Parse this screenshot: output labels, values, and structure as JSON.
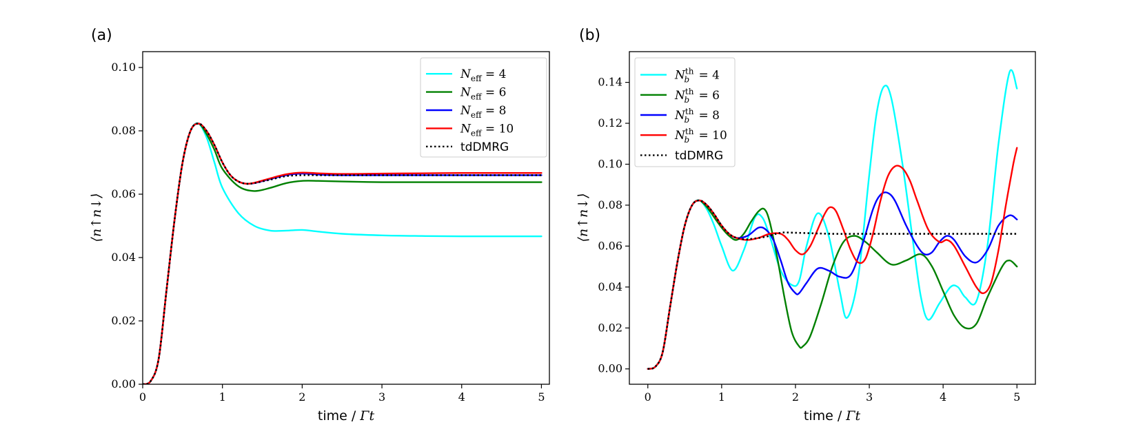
{
  "chart_data": [
    {
      "type": "line",
      "panel_label": "(a)",
      "xlabel_text": "time / ",
      "xlabel_math": "Γt",
      "ylabel": "⟨n↑n↓⟩",
      "xlim": [
        0,
        5.1
      ],
      "ylim": [
        0,
        0.105
      ],
      "xticks": [
        0,
        1,
        2,
        3,
        4,
        5
      ],
      "xtick_labels": [
        "0",
        "1",
        "2",
        "3",
        "4",
        "5"
      ],
      "yticks": [
        0.0,
        0.02,
        0.04,
        0.06,
        0.08,
        0.1
      ],
      "ytick_labels": [
        "0.00",
        "0.02",
        "0.04",
        "0.06",
        "0.08",
        "0.10"
      ],
      "legend_position": "top-right",
      "series": [
        {
          "name": "N_eff = 4",
          "label_main": "N",
          "label_sub": "eff",
          "label_rest": " = 4",
          "color": "#00ffff",
          "style": "solid",
          "x": [
            0,
            0.1,
            0.2,
            0.3,
            0.4,
            0.5,
            0.6,
            0.7,
            0.8,
            0.9,
            1.0,
            1.2,
            1.4,
            1.6,
            1.8,
            2.0,
            2.2,
            2.5,
            3.0,
            3.5,
            4.0,
            4.5,
            5.0
          ],
          "y": [
            0,
            0.001,
            0.008,
            0.03,
            0.052,
            0.07,
            0.08,
            0.0823,
            0.078,
            0.07,
            0.062,
            0.054,
            0.05,
            0.0485,
            0.0485,
            0.0487,
            0.0482,
            0.0475,
            0.047,
            0.0468,
            0.0467,
            0.0467,
            0.0467
          ]
        },
        {
          "name": "N_eff = 6",
          "label_main": "N",
          "label_sub": "eff",
          "label_rest": " = 6",
          "color": "#008000",
          "style": "solid",
          "x": [
            0,
            0.1,
            0.2,
            0.3,
            0.4,
            0.5,
            0.6,
            0.7,
            0.8,
            0.9,
            1.0,
            1.2,
            1.4,
            1.6,
            1.8,
            2.0,
            2.2,
            2.5,
            3.0,
            3.5,
            4.0,
            4.5,
            5.0
          ],
          "y": [
            0,
            0.001,
            0.008,
            0.03,
            0.052,
            0.07,
            0.08,
            0.0823,
            0.079,
            0.074,
            0.068,
            0.0625,
            0.061,
            0.062,
            0.0635,
            0.0642,
            0.0642,
            0.064,
            0.0638,
            0.0638,
            0.0638,
            0.0638,
            0.0638
          ]
        },
        {
          "name": "N_eff = 8",
          "label_main": "N",
          "label_sub": "eff",
          "label_rest": " = 8",
          "color": "#0000ff",
          "style": "solid",
          "x": [
            0,
            0.1,
            0.2,
            0.3,
            0.4,
            0.5,
            0.6,
            0.7,
            0.8,
            0.9,
            1.0,
            1.1,
            1.2,
            1.3,
            1.4,
            1.6,
            1.8,
            2.0,
            2.2,
            2.5,
            3.0,
            3.5,
            4.0,
            4.5,
            5.0
          ],
          "y": [
            0,
            0.001,
            0.008,
            0.03,
            0.052,
            0.07,
            0.08,
            0.0823,
            0.08,
            0.0755,
            0.07,
            0.066,
            0.064,
            0.0633,
            0.0635,
            0.0648,
            0.066,
            0.0665,
            0.0662,
            0.066,
            0.066,
            0.066,
            0.066,
            0.066,
            0.066
          ]
        },
        {
          "name": "N_eff = 10",
          "label_main": "N",
          "label_sub": "eff",
          "label_rest": " = 10",
          "color": "#ff0000",
          "style": "solid",
          "x": [
            0,
            0.1,
            0.2,
            0.3,
            0.4,
            0.5,
            0.6,
            0.7,
            0.8,
            0.9,
            1.0,
            1.1,
            1.2,
            1.3,
            1.4,
            1.6,
            1.8,
            2.0,
            2.2,
            2.5,
            3.0,
            3.5,
            4.0,
            4.5,
            5.0
          ],
          "y": [
            0,
            0.001,
            0.008,
            0.03,
            0.052,
            0.07,
            0.08,
            0.0823,
            0.08,
            0.0755,
            0.07,
            0.066,
            0.064,
            0.0633,
            0.0636,
            0.065,
            0.0663,
            0.0668,
            0.0666,
            0.0664,
            0.0665,
            0.0666,
            0.0667,
            0.0667,
            0.0667
          ]
        },
        {
          "name": "tdDMRG",
          "label_plain": "tdDMRG",
          "color": "#000000",
          "style": "dotted",
          "x": [
            0,
            0.1,
            0.2,
            0.3,
            0.4,
            0.5,
            0.6,
            0.7,
            0.8,
            0.9,
            1.0,
            1.1,
            1.2,
            1.3,
            1.4,
            1.6,
            1.8,
            2.0,
            2.2,
            2.5,
            3.0,
            3.5,
            4.0,
            4.5,
            5.0
          ],
          "y": [
            0,
            0.001,
            0.008,
            0.03,
            0.052,
            0.07,
            0.08,
            0.0823,
            0.08,
            0.0755,
            0.07,
            0.066,
            0.064,
            0.0633,
            0.0635,
            0.0646,
            0.0657,
            0.066,
            0.066,
            0.066,
            0.066,
            0.066,
            0.066,
            0.066,
            0.066
          ]
        }
      ]
    },
    {
      "type": "line",
      "panel_label": "(b)",
      "xlabel_text": "time / ",
      "xlabel_math": "Γt",
      "ylabel": "⟨n↑n↓⟩",
      "xlim": [
        -0.25,
        5.25
      ],
      "ylim": [
        -0.0075,
        0.155
      ],
      "xticks": [
        0,
        1,
        2,
        3,
        4,
        5
      ],
      "xtick_labels": [
        "0",
        "1",
        "2",
        "3",
        "4",
        "5"
      ],
      "yticks": [
        0.0,
        0.02,
        0.04,
        0.06,
        0.08,
        0.1,
        0.12,
        0.14
      ],
      "ytick_labels": [
        "0.00",
        "0.02",
        "0.04",
        "0.06",
        "0.08",
        "0.10",
        "0.12",
        "0.14"
      ],
      "legend_position": "top-left",
      "series": [
        {
          "name": "N_b^th = 4",
          "label_main": "N",
          "label_sub": "b",
          "label_sup": "th",
          "label_rest": " = 4",
          "color": "#00ffff",
          "style": "solid",
          "x": [
            0,
            0.1,
            0.2,
            0.3,
            0.4,
            0.5,
            0.6,
            0.7,
            0.8,
            0.9,
            1.0,
            1.15,
            1.3,
            1.45,
            1.55,
            1.65,
            1.8,
            1.95,
            2.05,
            2.15,
            2.3,
            2.45,
            2.6,
            2.7,
            2.85,
            3.0,
            3.1,
            3.2,
            3.3,
            3.45,
            3.6,
            3.7,
            3.8,
            3.95,
            4.1,
            4.2,
            4.3,
            4.45,
            4.6,
            4.75,
            4.9,
            5.0
          ],
          "y": [
            0,
            0.001,
            0.008,
            0.03,
            0.052,
            0.07,
            0.08,
            0.0823,
            0.078,
            0.07,
            0.06,
            0.048,
            0.058,
            0.074,
            0.074,
            0.065,
            0.048,
            0.041,
            0.043,
            0.06,
            0.076,
            0.065,
            0.038,
            0.025,
            0.045,
            0.095,
            0.125,
            0.138,
            0.132,
            0.1,
            0.06,
            0.035,
            0.024,
            0.032,
            0.04,
            0.04,
            0.035,
            0.033,
            0.06,
            0.11,
            0.145,
            0.137
          ]
        },
        {
          "name": "N_b^th = 6",
          "label_main": "N",
          "label_sub": "b",
          "label_sup": "th",
          "label_rest": " = 6",
          "color": "#008000",
          "style": "solid",
          "x": [
            0,
            0.1,
            0.2,
            0.3,
            0.4,
            0.5,
            0.6,
            0.7,
            0.8,
            0.9,
            1.0,
            1.1,
            1.2,
            1.3,
            1.4,
            1.5,
            1.58,
            1.65,
            1.75,
            1.85,
            1.95,
            2.05,
            2.1,
            2.2,
            2.35,
            2.5,
            2.65,
            2.8,
            2.95,
            3.1,
            3.3,
            3.5,
            3.7,
            3.85,
            4.0,
            4.15,
            4.3,
            4.45,
            4.6,
            4.8,
            4.9,
            5.0
          ],
          "y": [
            0,
            0.001,
            0.008,
            0.03,
            0.052,
            0.07,
            0.08,
            0.0823,
            0.079,
            0.074,
            0.069,
            0.065,
            0.063,
            0.066,
            0.072,
            0.077,
            0.078,
            0.072,
            0.055,
            0.035,
            0.018,
            0.011,
            0.011,
            0.016,
            0.032,
            0.05,
            0.062,
            0.065,
            0.062,
            0.057,
            0.051,
            0.053,
            0.056,
            0.05,
            0.038,
            0.026,
            0.02,
            0.022,
            0.035,
            0.05,
            0.053,
            0.05
          ]
        },
        {
          "name": "N_b^th = 8",
          "label_main": "N",
          "label_sub": "b",
          "label_sup": "th",
          "label_rest": " = 8",
          "color": "#0000ff",
          "style": "solid",
          "x": [
            0,
            0.1,
            0.2,
            0.3,
            0.4,
            0.5,
            0.6,
            0.7,
            0.8,
            0.9,
            1.0,
            1.1,
            1.2,
            1.35,
            1.5,
            1.6,
            1.7,
            1.8,
            1.9,
            2.0,
            2.05,
            2.15,
            2.3,
            2.45,
            2.6,
            2.75,
            2.9,
            3.05,
            3.15,
            3.25,
            3.35,
            3.5,
            3.65,
            3.75,
            3.85,
            3.95,
            4.05,
            4.15,
            4.3,
            4.45,
            4.6,
            4.75,
            4.9,
            5.0
          ],
          "y": [
            0,
            0.001,
            0.008,
            0.03,
            0.052,
            0.07,
            0.08,
            0.0823,
            0.08,
            0.0755,
            0.07,
            0.066,
            0.064,
            0.065,
            0.069,
            0.068,
            0.063,
            0.053,
            0.042,
            0.037,
            0.037,
            0.042,
            0.049,
            0.048,
            0.045,
            0.046,
            0.06,
            0.078,
            0.085,
            0.086,
            0.082,
            0.07,
            0.06,
            0.056,
            0.057,
            0.062,
            0.065,
            0.063,
            0.055,
            0.052,
            0.058,
            0.07,
            0.075,
            0.073
          ]
        },
        {
          "name": "N_b^th = 10",
          "label_main": "N",
          "label_sub": "b",
          "label_sup": "th",
          "label_rest": " = 10",
          "color": "#ff0000",
          "style": "solid",
          "x": [
            0,
            0.1,
            0.2,
            0.3,
            0.4,
            0.5,
            0.6,
            0.7,
            0.8,
            0.9,
            1.0,
            1.1,
            1.2,
            1.35,
            1.5,
            1.65,
            1.8,
            1.9,
            2.0,
            2.1,
            2.2,
            2.3,
            2.4,
            2.47,
            2.55,
            2.65,
            2.75,
            2.85,
            2.95,
            3.05,
            3.15,
            3.25,
            3.35,
            3.45,
            3.55,
            3.65,
            3.8,
            3.95,
            4.05,
            4.15,
            4.3,
            4.45,
            4.55,
            4.65,
            4.75,
            4.85,
            4.95,
            5.0
          ],
          "y": [
            0,
            0.001,
            0.008,
            0.03,
            0.052,
            0.07,
            0.08,
            0.0823,
            0.08,
            0.0755,
            0.07,
            0.066,
            0.064,
            0.063,
            0.064,
            0.066,
            0.066,
            0.063,
            0.058,
            0.056,
            0.06,
            0.068,
            0.076,
            0.079,
            0.077,
            0.068,
            0.058,
            0.052,
            0.054,
            0.066,
            0.082,
            0.094,
            0.099,
            0.098,
            0.092,
            0.082,
            0.068,
            0.062,
            0.063,
            0.06,
            0.05,
            0.04,
            0.037,
            0.042,
            0.058,
            0.08,
            0.1,
            0.108
          ]
        },
        {
          "name": "tdDMRG",
          "label_plain": "tdDMRG",
          "color": "#000000",
          "style": "dotted",
          "x": [
            0,
            0.1,
            0.2,
            0.3,
            0.4,
            0.5,
            0.6,
            0.7,
            0.8,
            0.9,
            1.0,
            1.1,
            1.2,
            1.3,
            1.4,
            1.6,
            1.8,
            2.0,
            2.5,
            3.0,
            3.5,
            4.0,
            4.5,
            5.0
          ],
          "y": [
            0,
            0.001,
            0.008,
            0.03,
            0.052,
            0.07,
            0.08,
            0.0823,
            0.08,
            0.0755,
            0.07,
            0.066,
            0.064,
            0.0633,
            0.0635,
            0.0646,
            0.0665,
            0.0665,
            0.066,
            0.066,
            0.066,
            0.066,
            0.066,
            0.066
          ]
        }
      ]
    }
  ]
}
